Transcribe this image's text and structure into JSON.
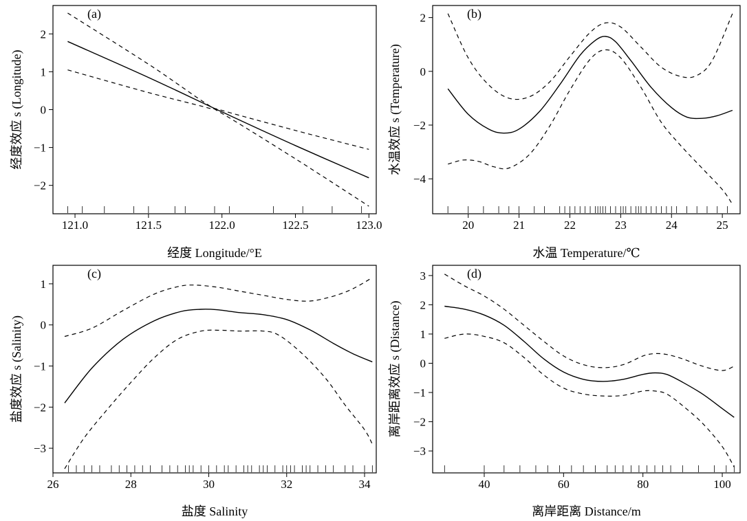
{
  "chart_data": [
    {
      "type": "line",
      "panel_label": "(a)",
      "xlabel": "经度 Longitude/°E",
      "ylabel": "经度效应 s (Longitude)",
      "xlim": [
        120.85,
        123.05
      ],
      "ylim": [
        -2.75,
        2.75
      ],
      "xticks": [
        121.0,
        121.5,
        122.0,
        122.5,
        123.0
      ],
      "xtick_labels": [
        "121.0",
        "121.5",
        "122.0",
        "122.5",
        "123.0"
      ],
      "yticks": [
        -2,
        -1,
        0,
        1,
        2
      ],
      "ytick_labels": [
        "−2",
        "−1",
        "0",
        "1",
        "2"
      ],
      "series": [
        {
          "role": "fit",
          "style": "solid",
          "x": [
            120.95,
            121.5,
            122.0,
            122.5,
            123.0
          ],
          "y": [
            1.8,
            0.85,
            -0.06,
            -0.95,
            -1.8
          ]
        },
        {
          "role": "upper_ci",
          "style": "dashed",
          "x": [
            120.95,
            121.5,
            121.9,
            122.0,
            122.5,
            123.0
          ],
          "y": [
            2.55,
            1.2,
            0.14,
            -0.02,
            -0.55,
            -1.05
          ]
        },
        {
          "role": "lower_ci",
          "style": "dashed",
          "x": [
            120.95,
            121.5,
            121.9,
            122.0,
            122.5,
            123.0
          ],
          "y": [
            1.05,
            0.45,
            0.05,
            -0.1,
            -1.3,
            -2.55
          ]
        }
      ],
      "rug": [
        120.95,
        121.05,
        121.2,
        121.4,
        121.5,
        121.68,
        121.75,
        121.95,
        122.05,
        122.35,
        122.55,
        122.75,
        122.95
      ]
    },
    {
      "type": "line",
      "panel_label": "(b)",
      "xlabel": "水温 Temperature/℃",
      "ylabel": "水温效应 s (Temperature)",
      "xlim": [
        19.3,
        25.35
      ],
      "ylim": [
        -5.3,
        2.45
      ],
      "xticks": [
        20,
        21,
        22,
        23,
        24,
        25
      ],
      "xtick_labels": [
        "20",
        "21",
        "22",
        "23",
        "24",
        "25"
      ],
      "yticks": [
        -4,
        -2,
        0,
        2
      ],
      "ytick_labels": [
        "−4",
        "−2",
        "0",
        "2"
      ],
      "series": [
        {
          "role": "fit",
          "style": "solid",
          "x": [
            19.6,
            20.0,
            20.4,
            20.7,
            21.0,
            21.4,
            21.8,
            22.2,
            22.5,
            22.7,
            22.9,
            23.2,
            23.6,
            24.0,
            24.3,
            24.6,
            24.9,
            25.2
          ],
          "y": [
            -0.65,
            -1.6,
            -2.15,
            -2.3,
            -2.15,
            -1.5,
            -0.5,
            0.6,
            1.15,
            1.3,
            1.1,
            0.4,
            -0.6,
            -1.35,
            -1.7,
            -1.75,
            -1.65,
            -1.45
          ]
        },
        {
          "role": "upper_ci",
          "style": "dashed",
          "x": [
            19.6,
            20.0,
            20.4,
            20.8,
            21.2,
            21.6,
            22.0,
            22.4,
            22.7,
            23.0,
            23.4,
            23.8,
            24.2,
            24.5,
            24.8,
            25.2
          ],
          "y": [
            2.15,
            0.5,
            -0.5,
            -1.0,
            -0.95,
            -0.4,
            0.55,
            1.45,
            1.8,
            1.65,
            0.9,
            0.15,
            -0.2,
            -0.15,
            0.4,
            2.15
          ]
        },
        {
          "role": "lower_ci",
          "style": "dashed",
          "x": [
            19.6,
            19.9,
            20.2,
            20.5,
            20.8,
            21.2,
            21.6,
            22.0,
            22.4,
            22.7,
            23.0,
            23.4,
            23.8,
            24.2,
            24.6,
            25.0,
            25.2
          ],
          "y": [
            -3.45,
            -3.3,
            -3.35,
            -3.55,
            -3.6,
            -3.1,
            -2.05,
            -0.7,
            0.45,
            0.8,
            0.5,
            -0.6,
            -1.9,
            -2.8,
            -3.6,
            -4.4,
            -4.95
          ]
        }
      ],
      "rug": [
        19.6,
        20.0,
        20.3,
        20.6,
        20.8,
        21.0,
        21.3,
        21.5,
        21.8,
        21.9,
        22.0,
        22.1,
        22.2,
        22.3,
        22.4,
        22.5,
        22.55,
        22.6,
        22.65,
        22.7,
        22.8,
        22.9,
        23.0,
        23.05,
        23.1,
        23.2,
        23.3,
        23.35,
        23.4,
        23.5,
        23.6,
        23.7,
        23.8,
        23.9,
        24.0,
        24.1,
        24.3,
        24.5,
        24.7,
        24.9,
        25.1
      ]
    },
    {
      "type": "line",
      "panel_label": "(c)",
      "xlabel": "盐度 Salinity",
      "ylabel": "盐度效应 s (Salinity)",
      "xlim": [
        26.0,
        34.3
      ],
      "ylim": [
        -3.6,
        1.45
      ],
      "xticks": [
        26,
        28,
        30,
        32,
        34
      ],
      "xtick_labels": [
        "26",
        "28",
        "30",
        "32",
        "34"
      ],
      "yticks": [
        -3,
        -2,
        -1,
        0,
        1
      ],
      "ytick_labels": [
        "−3",
        "−2",
        "−1",
        "0",
        "1"
      ],
      "series": [
        {
          "role": "fit",
          "style": "solid",
          "x": [
            26.3,
            27.0,
            27.8,
            28.6,
            29.3,
            29.8,
            30.2,
            30.8,
            31.4,
            32.0,
            32.6,
            33.2,
            33.7,
            34.2
          ],
          "y": [
            -1.9,
            -1.05,
            -0.35,
            0.1,
            0.33,
            0.38,
            0.37,
            0.3,
            0.25,
            0.13,
            -0.12,
            -0.45,
            -0.7,
            -0.9
          ]
        },
        {
          "role": "upper_ci",
          "style": "dashed",
          "x": [
            26.3,
            27.0,
            27.8,
            28.6,
            29.2,
            29.6,
            30.2,
            30.8,
            31.4,
            32.0,
            32.6,
            33.2,
            33.7,
            34.2
          ],
          "y": [
            -0.28,
            -0.08,
            0.35,
            0.75,
            0.93,
            0.97,
            0.92,
            0.82,
            0.72,
            0.62,
            0.58,
            0.7,
            0.88,
            1.15
          ]
        },
        {
          "role": "lower_ci",
          "style": "dashed",
          "x": [
            26.3,
            26.8,
            27.4,
            28.0,
            28.6,
            29.2,
            29.8,
            30.3,
            30.8,
            31.4,
            31.8,
            32.4,
            33.0,
            33.5,
            34.0,
            34.2
          ],
          "y": [
            -3.5,
            -2.75,
            -2.05,
            -1.4,
            -0.8,
            -0.35,
            -0.15,
            -0.13,
            -0.15,
            -0.15,
            -0.25,
            -0.7,
            -1.3,
            -1.95,
            -2.55,
            -2.9
          ]
        }
      ],
      "rug": [
        26.4,
        26.6,
        26.8,
        27.0,
        27.2,
        27.5,
        27.7,
        27.9,
        28.1,
        28.3,
        28.5,
        28.8,
        29.0,
        29.2,
        29.4,
        29.5,
        29.6,
        29.8,
        30.0,
        30.2,
        30.4,
        30.5,
        30.7,
        30.9,
        31.0,
        31.1,
        31.3,
        31.4,
        31.5,
        31.7,
        31.9,
        32.0,
        32.1,
        32.2,
        32.4,
        32.5,
        32.6,
        32.8,
        33.0,
        33.2,
        33.5,
        33.7,
        34.0,
        34.2
      ]
    },
    {
      "type": "line",
      "panel_label": "(d)",
      "xlabel": "离岸距离 Distance/m",
      "ylabel": "离岸距离效应 s (Distance)",
      "xlim": [
        27.0,
        104.5
      ],
      "ylim": [
        -3.75,
        3.35
      ],
      "xticks": [
        40,
        60,
        80,
        100
      ],
      "xtick_labels": [
        "40",
        "60",
        "80",
        "100"
      ],
      "yticks": [
        -3,
        -2,
        -1,
        0,
        1,
        2,
        3
      ],
      "ytick_labels": [
        "−3",
        "−2",
        "−1",
        "0",
        "1",
        "2",
        "3"
      ],
      "series": [
        {
          "role": "fit",
          "style": "solid",
          "x": [
            30,
            35,
            40,
            45,
            50,
            55,
            60,
            65,
            70,
            75,
            80,
            83,
            86,
            90,
            95,
            100,
            103
          ],
          "y": [
            1.95,
            1.85,
            1.65,
            1.3,
            0.75,
            0.15,
            -0.3,
            -0.55,
            -0.62,
            -0.55,
            -0.38,
            -0.33,
            -0.38,
            -0.65,
            -1.05,
            -1.55,
            -1.85
          ]
        },
        {
          "role": "upper_ci",
          "style": "dashed",
          "x": [
            30,
            35,
            40,
            45,
            50,
            55,
            60,
            65,
            70,
            75,
            80,
            83,
            86,
            90,
            95,
            100,
            103
          ],
          "y": [
            3.05,
            2.65,
            2.3,
            1.85,
            1.3,
            0.75,
            0.25,
            -0.05,
            -0.15,
            -0.05,
            0.25,
            0.33,
            0.3,
            0.15,
            -0.1,
            -0.25,
            -0.1
          ]
        },
        {
          "role": "lower_ci",
          "style": "dashed",
          "x": [
            30,
            35,
            40,
            45,
            50,
            55,
            60,
            65,
            70,
            75,
            80,
            83,
            86,
            90,
            95,
            100,
            103
          ],
          "y": [
            0.85,
            1.0,
            0.92,
            0.7,
            0.2,
            -0.4,
            -0.85,
            -1.05,
            -1.12,
            -1.1,
            -0.95,
            -0.95,
            -1.05,
            -1.45,
            -2.05,
            -2.85,
            -3.55
          ]
        }
      ],
      "rug": [
        30,
        40,
        45,
        49,
        53,
        56,
        59,
        62,
        65,
        68,
        71,
        73,
        75,
        77,
        79,
        81,
        83,
        85,
        87,
        90,
        94,
        98,
        101,
        103
      ]
    }
  ]
}
